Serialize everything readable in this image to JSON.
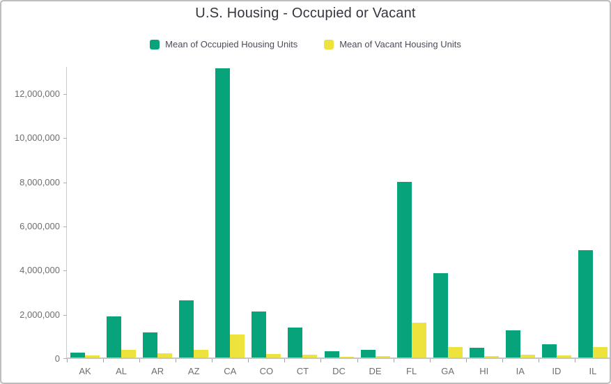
{
  "chart_data": {
    "type": "bar",
    "title": "U.S. Housing - Occupied or Vacant",
    "xlabel": "",
    "ylabel": "",
    "categories": [
      "AK",
      "AL",
      "AR",
      "AZ",
      "CA",
      "CO",
      "CT",
      "DC",
      "DE",
      "FL",
      "GA",
      "HI",
      "IA",
      "ID",
      "IL"
    ],
    "series": [
      {
        "name": "Mean of Occupied Housing Units",
        "color": "#07a47c",
        "values": [
          220000,
          1850000,
          1140000,
          2600000,
          13100000,
          2080000,
          1350000,
          280000,
          350000,
          7950000,
          3820000,
          440000,
          1220000,
          610000,
          4850000
        ]
      },
      {
        "name": "Mean of Vacant Housing Units",
        "color": "#ede33c",
        "values": [
          80000,
          340000,
          190000,
          340000,
          1050000,
          170000,
          120000,
          30000,
          60000,
          1580000,
          470000,
          70000,
          120000,
          90000,
          460000
        ]
      }
    ],
    "ylim": [
      0,
      13250000
    ],
    "y_ticks": [
      0,
      2000000,
      4000000,
      6000000,
      8000000,
      10000000,
      12000000
    ],
    "y_tick_labels": [
      "0",
      "2,000,000",
      "4,000,000",
      "6,000,000",
      "8,000,000",
      "10,000,000",
      "12,000,000"
    ],
    "grid": false,
    "legend_position": "top"
  },
  "style": {
    "title_color": "#35353f",
    "legend_text_color": "#4b4b5c",
    "tick_text_color": "#6e6e6e",
    "axis_line_color": "#c6c6c6",
    "border_color": "#bdbdbd",
    "background_color": "#ffffff"
  }
}
